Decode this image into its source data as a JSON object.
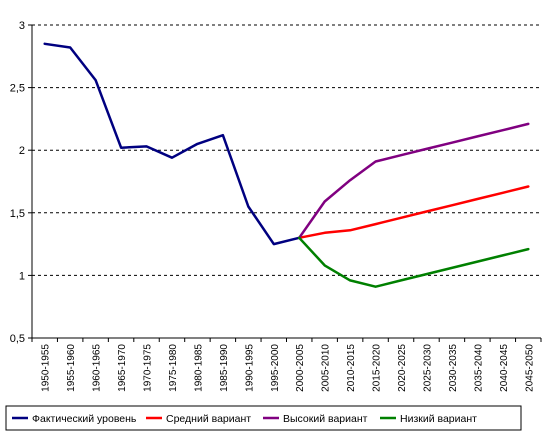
{
  "chart_data": {
    "type": "line",
    "title": "",
    "xlabel": "",
    "ylabel": "",
    "ylim": [
      0.5,
      3
    ],
    "yticks": [
      "0,5",
      "1",
      "1,5",
      "2",
      "2,5",
      "3"
    ],
    "grid": "horizontal dashed",
    "legend_position": "bottom",
    "categories": [
      "1950-1955",
      "1955-1960",
      "1960-1965",
      "1965-1970",
      "1970-1975",
      "1975-1980",
      "1980-1985",
      "1985-1990",
      "1990-1995",
      "1995-2000",
      "2000-2005",
      "2005-2010",
      "2010-2015",
      "2015-2020",
      "2020-2025",
      "2025-2030",
      "2030-2035",
      "2035-2040",
      "2040-2045",
      "2045-2050"
    ],
    "series": [
      {
        "name": "Фактический уровень",
        "color": "#000080",
        "values": [
          2.85,
          2.82,
          2.56,
          2.02,
          2.03,
          1.94,
          2.05,
          2.12,
          1.55,
          1.25,
          1.3,
          null,
          null,
          null,
          null,
          null,
          null,
          null,
          null,
          null
        ]
      },
      {
        "name": "Средний вариант",
        "color": "#ff0000",
        "values": [
          null,
          null,
          null,
          null,
          null,
          null,
          null,
          null,
          null,
          null,
          1.3,
          1.34,
          1.36,
          1.41,
          1.46,
          1.51,
          1.56,
          1.61,
          1.66,
          1.71
        ]
      },
      {
        "name": "Высокий вариант",
        "color": "#800080",
        "values": [
          null,
          null,
          null,
          null,
          null,
          null,
          null,
          null,
          null,
          null,
          1.3,
          1.59,
          1.76,
          1.91,
          1.96,
          2.01,
          2.06,
          2.11,
          2.16,
          2.21
        ]
      },
      {
        "name": "Низкий вариант",
        "color": "#008000",
        "values": [
          null,
          null,
          null,
          null,
          null,
          null,
          null,
          null,
          null,
          null,
          1.3,
          1.08,
          0.96,
          0.91,
          0.96,
          1.01,
          1.06,
          1.11,
          1.16,
          1.21
        ]
      }
    ]
  }
}
